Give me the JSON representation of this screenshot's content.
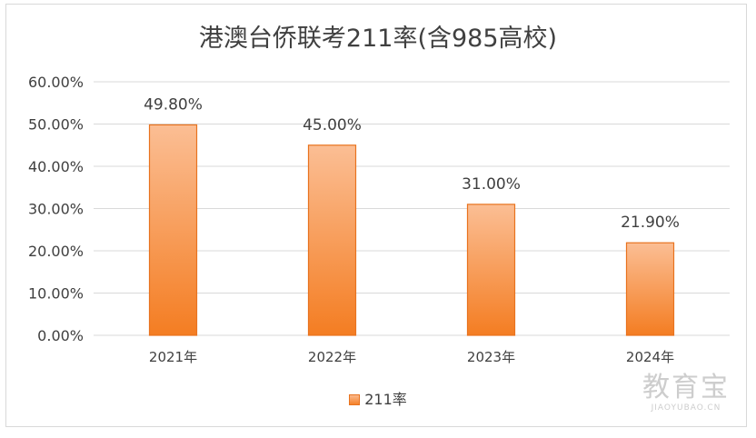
{
  "chart_data": {
    "type": "bar",
    "title": "港澳台侨联考211率(含985高校)",
    "categories": [
      "2021年",
      "2022年",
      "2023年",
      "2024年"
    ],
    "series": [
      {
        "name": "211率",
        "values": [
          49.8,
          45.0,
          31.0,
          21.9
        ]
      }
    ],
    "data_labels": [
      "49.80%",
      "45.00%",
      "31.00%",
      "21.90%"
    ],
    "y_ticks": [
      "0.00%",
      "10.00%",
      "20.00%",
      "30.00%",
      "40.00%",
      "50.00%",
      "60.00%"
    ],
    "ylim": [
      0,
      60
    ],
    "grid": true,
    "legend_position": "bottom",
    "colors": {
      "bar_top": "#fbbe94",
      "bar_bottom": "#f47d22",
      "bar_edge": "#e8731f",
      "grid": "#d9d9d9",
      "text": "#404040"
    }
  },
  "watermark": {
    "main": "教育宝",
    "sub": "JIAOYUBAO.CN"
  }
}
